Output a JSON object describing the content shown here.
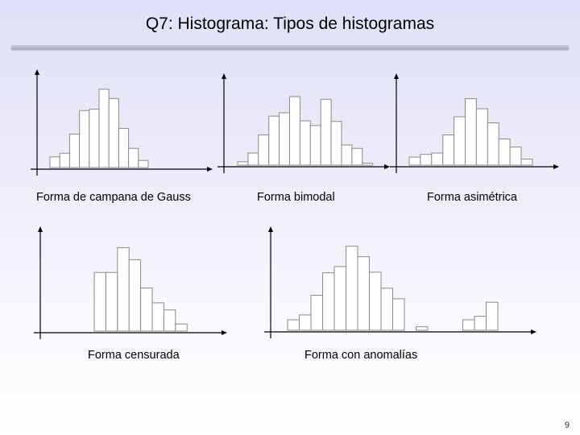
{
  "slide": {
    "title": "Q7: Histograma: Tipos de histogramas",
    "page_number": "9"
  },
  "chart_data": [
    {
      "type": "bar",
      "title": "Forma de campana de Gauss",
      "values": [
        15,
        20,
        47,
        80,
        82,
        110,
        97,
        55,
        27,
        10
      ],
      "ylim": [
        0,
        120
      ]
    },
    {
      "type": "bar",
      "title": "Forma bimodal",
      "values": [
        5,
        18,
        45,
        73,
        78,
        102,
        66,
        59,
        98,
        65,
        30,
        25,
        3
      ],
      "ylim": [
        0,
        120
      ]
    },
    {
      "type": "bar",
      "title": "Forma asimétrica",
      "values": [
        12,
        16,
        18,
        45,
        72,
        99,
        84,
        63,
        39,
        27,
        9
      ],
      "ylim": [
        0,
        120
      ]
    },
    {
      "type": "bar",
      "title": "Forma censurada",
      "values": [
        83,
        83,
        118,
        101,
        61,
        40,
        30,
        10
      ],
      "ylim": [
        0,
        130
      ]
    },
    {
      "type": "bar",
      "title": "Forma con anomalías",
      "values": [
        15,
        22,
        50,
        82,
        91,
        120,
        105,
        83,
        60,
        45,
        0,
        5,
        0,
        0,
        0,
        15,
        20,
        40
      ],
      "ylim": [
        0,
        130
      ]
    }
  ],
  "colors": {
    "bar_fill": "#ffffff",
    "bar_stroke": "#8a8a8a",
    "axis": "#000000"
  }
}
